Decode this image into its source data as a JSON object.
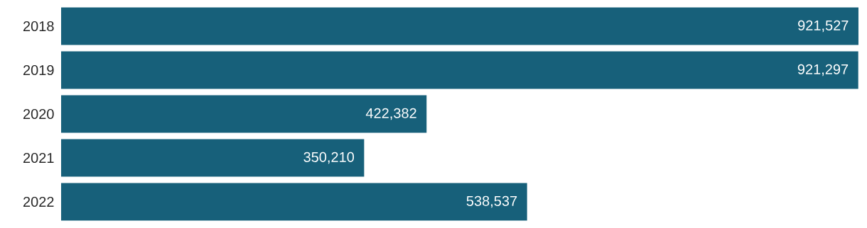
{
  "chart_data": {
    "type": "bar",
    "orientation": "horizontal",
    "categories": [
      "2018",
      "2019",
      "2020",
      "2021",
      "2022"
    ],
    "values": [
      921527,
      921297,
      422382,
      350210,
      538537
    ],
    "value_labels": [
      "921,527",
      "921,297",
      "422,382",
      "350,210",
      "538,537"
    ],
    "color": "#17607a"
  }
}
